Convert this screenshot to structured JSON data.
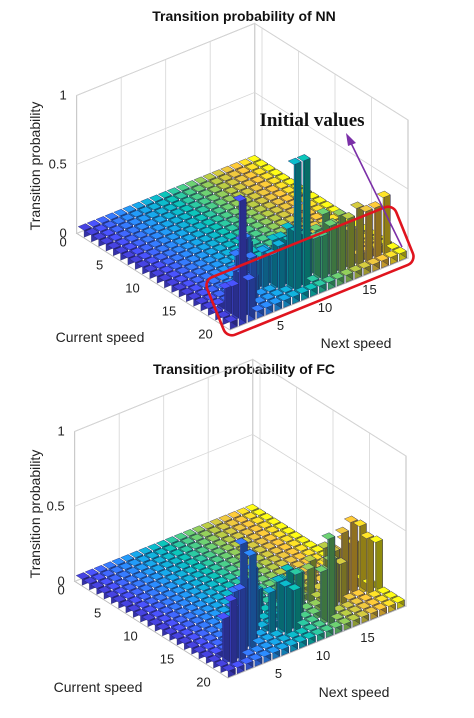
{
  "chart_data": [
    {
      "type": "bar3d",
      "title": "Transition probability of NN",
      "xlabel": "Next speed",
      "ylabel": "Current speed",
      "zlabel": "Transition probability",
      "x_ticks": [
        "5",
        "10",
        "15"
      ],
      "y_ticks": [
        "0",
        "5",
        "10",
        "15",
        "20"
      ],
      "z_ticks": [
        "0",
        "0.5",
        "1"
      ],
      "zlim": [
        0,
        1
      ],
      "x_count": 20,
      "y_count": 21,
      "default_value": 0.05,
      "colormap": "parula",
      "annotation": {
        "text": "Initial values",
        "arrow_color": "#7b2fa8",
        "box_color": "#e0141e"
      },
      "bars": [
        {
          "x": 1,
          "y": 0,
          "z": 0.9
        },
        {
          "x": 2,
          "y": 0,
          "z": 0.3
        },
        {
          "x": 1,
          "y": 1,
          "z": 0.25
        },
        {
          "x": 2,
          "y": 1,
          "z": 0.55
        },
        {
          "x": 3,
          "y": 1,
          "z": 0.4
        },
        {
          "x": 1,
          "y": 2,
          "z": 0.2
        },
        {
          "x": 2,
          "y": 2,
          "z": 0.3
        },
        {
          "x": 3,
          "y": 2,
          "z": 0.25
        },
        {
          "x": 4,
          "y": 2,
          "z": 0.2
        },
        {
          "x": 3,
          "y": 3,
          "z": 0.35
        },
        {
          "x": 4,
          "y": 3,
          "z": 0.45
        },
        {
          "x": 5,
          "y": 3,
          "z": 0.25
        },
        {
          "x": 4,
          "y": 4,
          "z": 0.3
        },
        {
          "x": 5,
          "y": 4,
          "z": 0.35
        },
        {
          "x": 6,
          "y": 4,
          "z": 0.2
        },
        {
          "x": 8,
          "y": 1,
          "z": 0.95
        },
        {
          "x": 9,
          "y": 1,
          "z": 0.95
        },
        {
          "x": 7,
          "y": 2,
          "z": 0.35
        },
        {
          "x": 8,
          "y": 2,
          "z": 0.45
        },
        {
          "x": 9,
          "y": 2,
          "z": 0.4
        },
        {
          "x": 6,
          "y": 3,
          "z": 0.3
        },
        {
          "x": 7,
          "y": 3,
          "z": 0.25
        },
        {
          "x": 8,
          "y": 3,
          "z": 0.35
        },
        {
          "x": 9,
          "y": 3,
          "z": 0.3
        },
        {
          "x": 7,
          "y": 4,
          "z": 0.25
        },
        {
          "x": 8,
          "y": 4,
          "z": 0.3
        },
        {
          "x": 10,
          "y": 2,
          "z": 0.35
        },
        {
          "x": 10,
          "y": 3,
          "z": 0.3
        },
        {
          "x": 11,
          "y": 2,
          "z": 0.3
        },
        {
          "x": 12,
          "y": 2,
          "z": 0.45
        },
        {
          "x": 11,
          "y": 1,
          "z": 0.35
        },
        {
          "x": 12,
          "y": 1,
          "z": 0.4
        },
        {
          "x": 13,
          "y": 1,
          "z": 0.45
        },
        {
          "x": 14,
          "y": 1,
          "z": 0.4
        },
        {
          "x": 13,
          "y": 2,
          "z": 0.35
        },
        {
          "x": 11,
          "y": 3,
          "z": 0.25
        },
        {
          "x": 12,
          "y": 3,
          "z": 0.3
        },
        {
          "x": 13,
          "y": 3,
          "z": 0.3
        },
        {
          "x": 14,
          "y": 2,
          "z": 0.3
        },
        {
          "x": 15,
          "y": 1,
          "z": 0.45
        },
        {
          "x": 16,
          "y": 1,
          "z": 0.4
        },
        {
          "x": 17,
          "y": 1,
          "z": 0.4
        },
        {
          "x": 18,
          "y": 1,
          "z": 0.45
        },
        {
          "x": 15,
          "y": 2,
          "z": 0.25
        },
        {
          "x": 10,
          "y": 4,
          "z": 0.25
        }
      ]
    },
    {
      "type": "bar3d",
      "title": "Transition probability of FC",
      "xlabel": "Next speed",
      "ylabel": "Current speed",
      "zlabel": "Transition probability",
      "x_ticks": [
        "5",
        "10",
        "15"
      ],
      "y_ticks": [
        "0",
        "5",
        "10",
        "15",
        "20"
      ],
      "z_ticks": [
        "0",
        "0.5",
        "1"
      ],
      "zlim": [
        0,
        1
      ],
      "x_count": 20,
      "y_count": 21,
      "default_value": 0.04,
      "colormap": "parula",
      "bars": [
        {
          "x": 1,
          "y": 1,
          "z": 0.45
        },
        {
          "x": 2,
          "y": 1,
          "z": 0.5
        },
        {
          "x": 1,
          "y": 2,
          "z": 0.3
        },
        {
          "x": 2,
          "y": 2,
          "z": 0.35
        },
        {
          "x": 3,
          "y": 2,
          "z": 0.75
        },
        {
          "x": 4,
          "y": 2,
          "z": 0.65
        },
        {
          "x": 3,
          "y": 3,
          "z": 0.4
        },
        {
          "x": 4,
          "y": 3,
          "z": 0.45
        },
        {
          "x": 5,
          "y": 3,
          "z": 0.5
        },
        {
          "x": 4,
          "y": 4,
          "z": 0.3
        },
        {
          "x": 5,
          "y": 4,
          "z": 0.35
        },
        {
          "x": 6,
          "y": 4,
          "z": 0.3
        },
        {
          "x": 5,
          "y": 5,
          "z": 0.25
        },
        {
          "x": 6,
          "y": 5,
          "z": 0.3
        },
        {
          "x": 7,
          "y": 5,
          "z": 0.25
        },
        {
          "x": 6,
          "y": 6,
          "z": 0.2
        },
        {
          "x": 7,
          "y": 6,
          "z": 0.25
        },
        {
          "x": 8,
          "y": 6,
          "z": 0.2
        },
        {
          "x": 7,
          "y": 3,
          "z": 0.3
        },
        {
          "x": 8,
          "y": 3,
          "z": 0.35
        },
        {
          "x": 9,
          "y": 3,
          "z": 0.4
        },
        {
          "x": 8,
          "y": 2,
          "z": 0.35
        },
        {
          "x": 9,
          "y": 2,
          "z": 0.3
        },
        {
          "x": 10,
          "y": 3,
          "z": 0.35
        },
        {
          "x": 9,
          "y": 4,
          "z": 0.3
        },
        {
          "x": 10,
          "y": 4,
          "z": 0.25
        },
        {
          "x": 11,
          "y": 4,
          "z": 0.3
        },
        {
          "x": 10,
          "y": 5,
          "z": 0.25
        },
        {
          "x": 11,
          "y": 5,
          "z": 0.2
        },
        {
          "x": 12,
          "y": 1,
          "z": 0.6
        },
        {
          "x": 12,
          "y": 2,
          "z": 0.35
        },
        {
          "x": 13,
          "y": 2,
          "z": 0.4
        },
        {
          "x": 13,
          "y": 3,
          "z": 0.3
        },
        {
          "x": 14,
          "y": 3,
          "z": 0.35
        },
        {
          "x": 14,
          "y": 4,
          "z": 0.4
        },
        {
          "x": 15,
          "y": 4,
          "z": 0.35
        },
        {
          "x": 15,
          "y": 3,
          "z": 0.3
        },
        {
          "x": 16,
          "y": 4,
          "z": 0.45
        },
        {
          "x": 16,
          "y": 5,
          "z": 0.3
        },
        {
          "x": 17,
          "y": 4,
          "z": 0.5
        },
        {
          "x": 17,
          "y": 5,
          "z": 0.35
        },
        {
          "x": 18,
          "y": 3,
          "z": 0.4
        },
        {
          "x": 18,
          "y": 4,
          "z": 0.45
        },
        {
          "x": 19,
          "y": 3,
          "z": 0.35
        },
        {
          "x": 15,
          "y": 5,
          "z": 0.25
        },
        {
          "x": 13,
          "y": 5,
          "z": 0.25
        },
        {
          "x": 12,
          "y": 6,
          "z": 0.2
        },
        {
          "x": 14,
          "y": 6,
          "z": 0.25
        },
        {
          "x": 16,
          "y": 6,
          "z": 0.2
        },
        {
          "x": 18,
          "y": 5,
          "z": 0.3
        },
        {
          "x": 11,
          "y": 7,
          "z": 0.15
        }
      ]
    }
  ]
}
